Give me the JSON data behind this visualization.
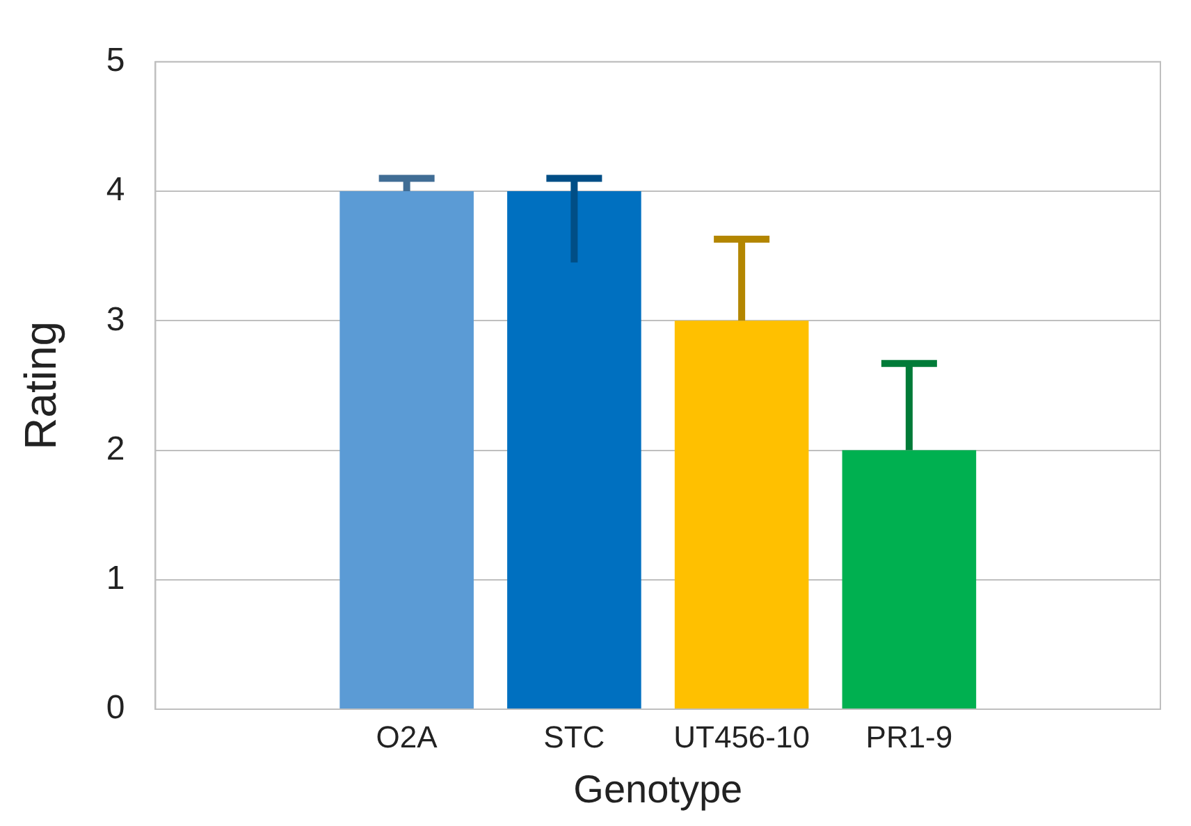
{
  "chart_data": {
    "type": "bar",
    "xlabel": "Genotype",
    "ylabel": "Rating",
    "categories": [
      null,
      "O2A",
      "STC",
      "UT456-10",
      "PR1-9",
      null
    ],
    "values": [
      null,
      4,
      4,
      3,
      2,
      null
    ],
    "colors": [
      null,
      "#5b9bd5",
      "#0070c0",
      "#ffc000",
      "#00b050",
      null
    ],
    "errors": [
      null,
      [
        4,
        4.1
      ],
      [
        3.45,
        4.1
      ],
      [
        3,
        3.63
      ],
      [
        2,
        2.67
      ],
      null
    ],
    "ylim": [
      0,
      5
    ],
    "yticks": [
      0,
      1,
      2,
      3,
      4,
      5
    ],
    "grid": "y",
    "legend": false
  }
}
